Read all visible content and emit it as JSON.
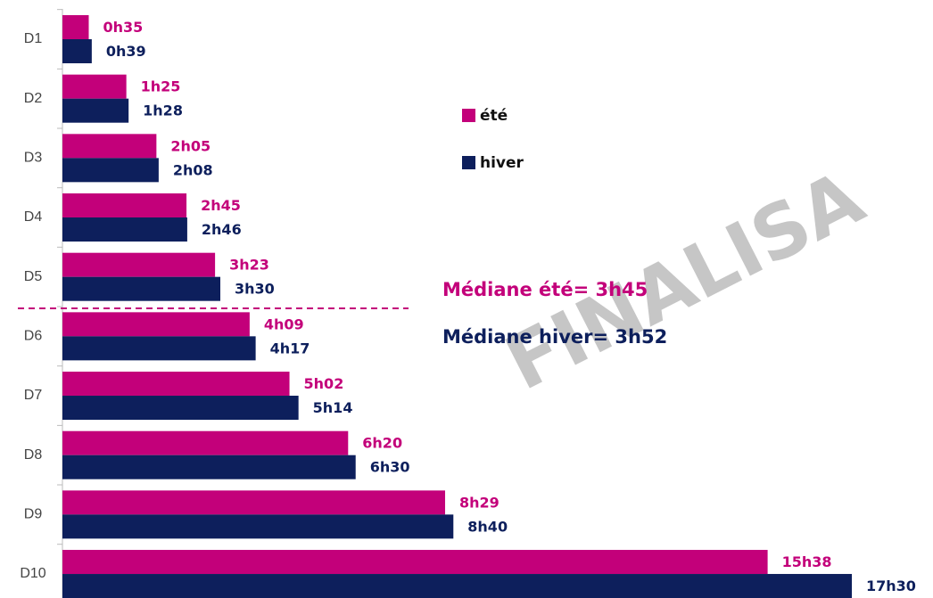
{
  "chart_data": {
    "type": "hbar",
    "categories": [
      "D1",
      "D2",
      "D3",
      "D4",
      "D5",
      "D6",
      "D7",
      "D8",
      "D9",
      "D10"
    ],
    "series": [
      {
        "name": "été",
        "color": "#c3007a",
        "values": [
          35,
          85,
          125,
          165,
          203,
          249,
          302,
          380,
          509,
          938
        ],
        "value_labels": [
          "0h35",
          "1h25",
          "2h05",
          "2h45",
          "3h23",
          "4h09",
          "5h02",
          "6h20",
          "8h29",
          "15h38"
        ]
      },
      {
        "name": "hiver",
        "color": "#0d1f5c",
        "values": [
          39,
          88,
          128,
          166,
          210,
          257,
          314,
          390,
          520,
          1050
        ],
        "value_labels": [
          "0h39",
          "1h28",
          "2h08",
          "2h46",
          "3h30",
          "4h17",
          "5h14",
          "6h30",
          "8h40",
          "17h30"
        ]
      }
    ],
    "annotations": [
      {
        "text": "Médiane été= 3h45",
        "color": "#c3007a"
      },
      {
        "text": "Médiane hiver= 3h52",
        "color": "#0d1f5c"
      }
    ],
    "watermark": "FINALISA"
  }
}
